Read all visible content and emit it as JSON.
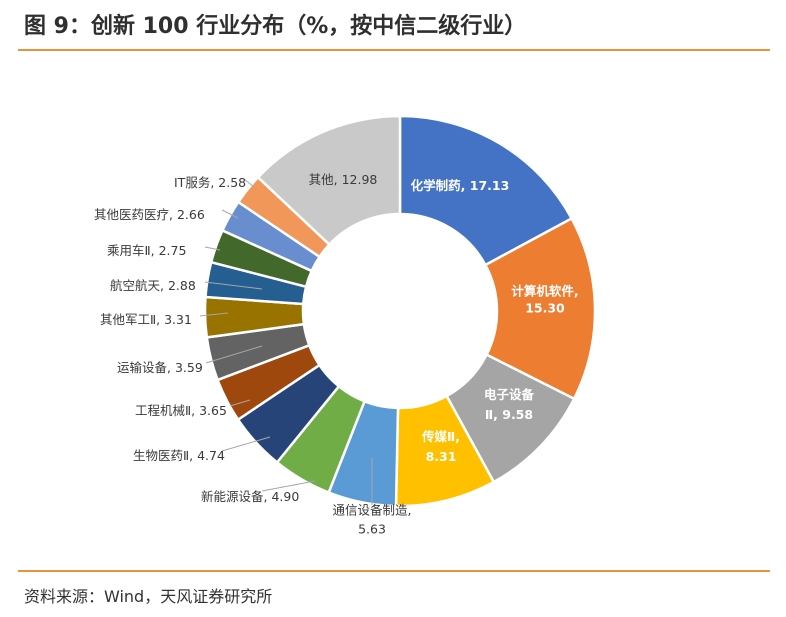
{
  "title": "图 9：创新 100 行业分布（%，按中信二级行业）",
  "source": "资料来源：Wind，天风证券研究所",
  "chart_data": {
    "type": "pie",
    "variant": "donut",
    "title": "图 9：创新 100 行业分布（%，按中信二级行业）",
    "unit": "%",
    "slices": [
      {
        "name": "化学制药",
        "value": 17.13,
        "color": "#4472c4"
      },
      {
        "name": "计算机软件",
        "value": 15.3,
        "color": "#ed7d31"
      },
      {
        "name": "电子设备Ⅱ",
        "value": 9.58,
        "color": "#a5a5a5"
      },
      {
        "name": "传媒Ⅱ",
        "value": 8.31,
        "color": "#ffc000"
      },
      {
        "name": "通信设备制造",
        "value": 5.63,
        "color": "#5b9bd5"
      },
      {
        "name": "新能源设备",
        "value": 4.9,
        "color": "#70ad47"
      },
      {
        "name": "生物医药Ⅱ",
        "value": 4.74,
        "color": "#264478"
      },
      {
        "name": "工程机械Ⅱ",
        "value": 3.65,
        "color": "#9e480e"
      },
      {
        "name": "运输设备",
        "value": 3.59,
        "color": "#636363"
      },
      {
        "name": "其他军工Ⅱ",
        "value": 3.31,
        "color": "#997300"
      },
      {
        "name": "航空航天",
        "value": 2.88,
        "color": "#255e91"
      },
      {
        "name": "乘用车Ⅱ",
        "value": 2.75,
        "color": "#43682b"
      },
      {
        "name": "其他医药医疗",
        "value": 2.66,
        "color": "#698ed0"
      },
      {
        "name": "IT服务",
        "value": 2.58,
        "color": "#f1975a"
      },
      {
        "name": "其他",
        "value": 12.98,
        "color": "#c9c9c9"
      }
    ],
    "labels": [
      {
        "lines": [
          "化学制药, 17.13"
        ]
      },
      {
        "lines": [
          "计算机软件,",
          "15.30"
        ]
      },
      {
        "lines": [
          "电子设备",
          "Ⅱ, 9.58"
        ]
      },
      {
        "lines": [
          "传媒Ⅱ,",
          "8.31"
        ]
      },
      {
        "lines": [
          "通信设备制造,",
          "5.63"
        ]
      },
      {
        "lines": [
          "新能源设备, 4.90"
        ]
      },
      {
        "lines": [
          "生物医药Ⅱ, 4.74"
        ]
      },
      {
        "lines": [
          "工程机械Ⅱ, 3.65"
        ]
      },
      {
        "lines": [
          "运输设备, 3.59"
        ]
      },
      {
        "lines": [
          "其他军工Ⅱ, 3.31"
        ]
      },
      {
        "lines": [
          "航空航天, 2.88"
        ]
      },
      {
        "lines": [
          "乘用车Ⅱ, 2.75"
        ]
      },
      {
        "lines": [
          "其他医药医疗, 2.66"
        ]
      },
      {
        "lines": [
          "IT服务, 2.58"
        ]
      },
      {
        "lines": [
          "其他, 12.98"
        ]
      }
    ]
  }
}
